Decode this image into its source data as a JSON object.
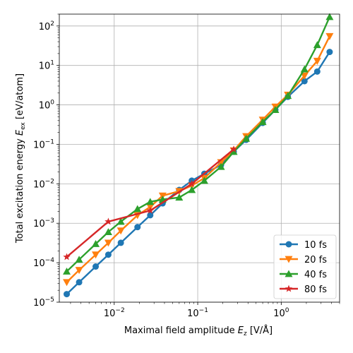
{
  "chart_data": {
    "type": "line",
    "xlabel": "Maximal field amplitude E_z [V/Å]",
    "xlabel_parts": {
      "pre": "Maximal field amplitude ",
      "sym": "E",
      "sub": "z",
      "post": " [V/Å]"
    },
    "ylabel": "Total excitation energy E_ex [eV/atom]",
    "ylabel_parts": {
      "pre": "Total excitation energy ",
      "sym": "E",
      "sub": "ex",
      "post": " [eV/atom]"
    },
    "xscale": "log",
    "yscale": "log",
    "xlim": [
      0.0022,
      5.0
    ],
    "ylim": [
      1e-05,
      200
    ],
    "grid": true,
    "legend_position": "lower-right",
    "x_ticks": [
      {
        "value": 0.01,
        "base": "10",
        "exp": "−2"
      },
      {
        "value": 0.1,
        "base": "10",
        "exp": "−1"
      },
      {
        "value": 1,
        "base": "10",
        "exp": "0"
      }
    ],
    "y_ticks": [
      {
        "value": 1e-05,
        "base": "10",
        "exp": "−5"
      },
      {
        "value": 0.0001,
        "base": "10",
        "exp": "−4"
      },
      {
        "value": 0.001,
        "base": "10",
        "exp": "−3"
      },
      {
        "value": 0.01,
        "base": "10",
        "exp": "−2"
      },
      {
        "value": 0.1,
        "base": "10",
        "exp": "−1"
      },
      {
        "value": 1,
        "base": "10",
        "exp": "0"
      },
      {
        "value": 10,
        "base": "10",
        "exp": "1"
      },
      {
        "value": 100,
        "base": "10",
        "exp": "2"
      }
    ],
    "series": [
      {
        "name": "10 fs",
        "color": "#1f77b4",
        "marker": "circle",
        "x": [
          0.0027,
          0.0038,
          0.006,
          0.0085,
          0.012,
          0.019,
          0.027,
          0.038,
          0.06,
          0.085,
          0.12,
          0.19,
          0.27,
          0.38,
          0.6,
          0.85,
          1.2,
          1.9,
          2.7,
          3.8
        ],
        "y": [
          1.6e-05,
          3.2e-05,
          8e-05,
          0.00016,
          0.00032,
          0.0008,
          0.0016,
          0.0032,
          0.007,
          0.012,
          0.018,
          0.03,
          0.065,
          0.13,
          0.35,
          0.75,
          1.6,
          4.0,
          7.0,
          22
        ]
      },
      {
        "name": "20 fs",
        "color": "#ff7f0e",
        "marker": "triangle-down",
        "x": [
          0.0027,
          0.0038,
          0.006,
          0.0085,
          0.012,
          0.019,
          0.027,
          0.038,
          0.06,
          0.085,
          0.12,
          0.19,
          0.27,
          0.38,
          0.6,
          0.85,
          1.2,
          1.9,
          2.7,
          3.8
        ],
        "y": [
          3.2e-05,
          6.5e-05,
          0.00016,
          0.00032,
          0.00065,
          0.0016,
          0.0026,
          0.005,
          0.0065,
          0.009,
          0.014,
          0.035,
          0.07,
          0.16,
          0.42,
          0.9,
          1.8,
          5.5,
          13,
          55
        ]
      },
      {
        "name": "40 fs",
        "color": "#2ca02c",
        "marker": "triangle-up",
        "x": [
          0.0027,
          0.0038,
          0.006,
          0.0085,
          0.012,
          0.019,
          0.027,
          0.038,
          0.06,
          0.085,
          0.12,
          0.19,
          0.27,
          0.38,
          0.6,
          0.85,
          1.2,
          1.9,
          2.7,
          3.8
        ],
        "y": [
          6e-05,
          0.00012,
          0.0003,
          0.0006,
          0.0011,
          0.0023,
          0.0035,
          0.004,
          0.0045,
          0.007,
          0.012,
          0.027,
          0.065,
          0.14,
          0.37,
          0.75,
          1.7,
          8.0,
          33,
          170
        ]
      },
      {
        "name": "80 fs",
        "color": "#d62728",
        "marker": "star",
        "x": [
          0.0027,
          0.0085,
          0.027,
          0.085,
          0.27
        ],
        "y": [
          0.00014,
          0.0011,
          0.0021,
          0.01,
          0.075
        ]
      }
    ]
  }
}
